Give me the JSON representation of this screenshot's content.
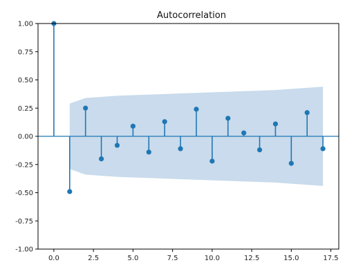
{
  "chart_data": {
    "type": "stem",
    "title": "Autocorrelation",
    "xlabel": "",
    "ylabel": "",
    "xlim": [
      -1,
      18
    ],
    "ylim": [
      -1.0,
      1.0
    ],
    "xticks": [
      "0.0",
      "2.5",
      "5.0",
      "7.5",
      "10.0",
      "12.5",
      "15.0",
      "17.5"
    ],
    "yticks": [
      "1.00",
      "0.75",
      "0.50",
      "0.25",
      "0.00",
      "-0.25",
      "-0.50",
      "-0.75",
      "-1.00"
    ],
    "grid": false,
    "series": [
      {
        "lags": [
          0,
          1,
          2,
          3,
          4,
          5,
          6,
          7,
          8,
          9,
          10,
          11,
          12,
          13,
          14,
          15,
          16,
          17
        ],
        "values": [
          1.0,
          -0.49,
          0.25,
          -0.2,
          -0.08,
          0.09,
          -0.14,
          0.13,
          -0.11,
          0.24,
          -0.22,
          0.16,
          0.03,
          -0.12,
          0.11,
          -0.24,
          0.21,
          -0.11
        ]
      }
    ],
    "confidence_band": {
      "lags": [
        1,
        2,
        3,
        4,
        5,
        6,
        7,
        8,
        9,
        10,
        11,
        12,
        13,
        14,
        15,
        16,
        17
      ],
      "upper": [
        0.29,
        0.34,
        0.35,
        0.36,
        0.365,
        0.37,
        0.375,
        0.38,
        0.385,
        0.39,
        0.395,
        0.4,
        0.405,
        0.41,
        0.42,
        0.43,
        0.44
      ]
    },
    "colors": {
      "stem": "#1f77b4",
      "band": "#c3d7ea",
      "zero_line": "#1f77b4",
      "axis": "#000000"
    }
  }
}
